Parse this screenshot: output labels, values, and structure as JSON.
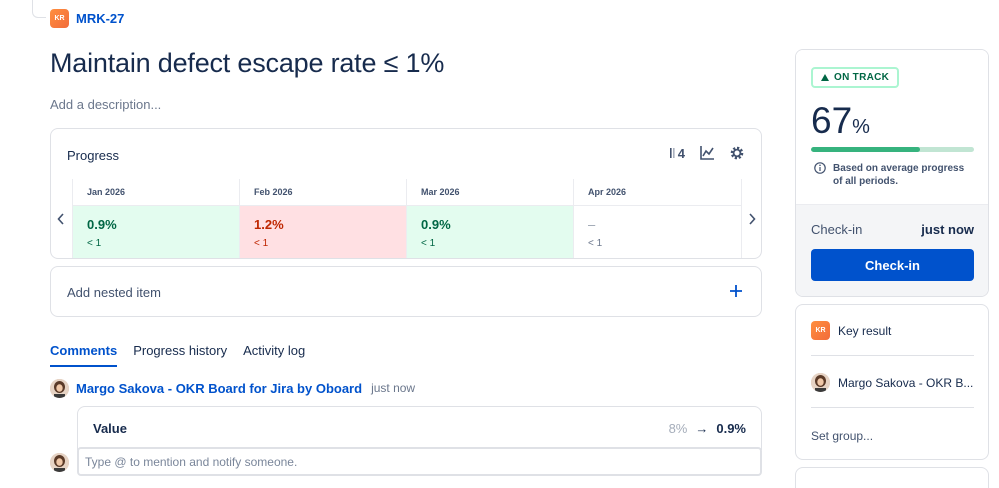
{
  "issue": {
    "type_badge": "KR",
    "key": "MRK-27",
    "title": "Maintain defect escape rate ≤ 1%",
    "description_placeholder": "Add a description..."
  },
  "progress": {
    "heading": "Progress",
    "period_count": "4",
    "periods": [
      {
        "month": "Jan 2026",
        "value": "0.9%",
        "target": "< 1",
        "status": "good"
      },
      {
        "month": "Feb 2026",
        "value": "1.2%",
        "target": "< 1",
        "status": "bad"
      },
      {
        "month": "Mar 2026",
        "value": "0.9%",
        "target": "< 1",
        "status": "good"
      },
      {
        "month": "Apr 2026",
        "value": "–",
        "target": "< 1",
        "status": "empty"
      }
    ]
  },
  "nested": {
    "label": "Add nested item"
  },
  "tabs": [
    "Comments",
    "Progress history",
    "Activity log"
  ],
  "comment": {
    "author": "Margo Sakova - OKR Board for Jira by Oboard",
    "time": "just now",
    "value_label": "Value",
    "old_value": "8%",
    "arrow": "→",
    "new_value": "0.9%",
    "input_placeholder": "Type @ to mention and notify someone."
  },
  "status": {
    "label": "ON TRACK",
    "percent": "67",
    "percent_sign": "%",
    "progress_fraction": 0.67,
    "info": "Based on average progress of all periods.",
    "checkin_label": "Check-in",
    "checkin_time": "just now",
    "checkin_button": "Check-in"
  },
  "details": {
    "type_badge": "KR",
    "type_label": "Key result",
    "owner": "Margo Sakova - OKR B...",
    "group_placeholder": "Set group..."
  },
  "colors": {
    "accent": "#0052cc",
    "good_bg": "#e3fcef",
    "bad_bg": "#ffe0e3",
    "track_green": "#36b37e"
  }
}
